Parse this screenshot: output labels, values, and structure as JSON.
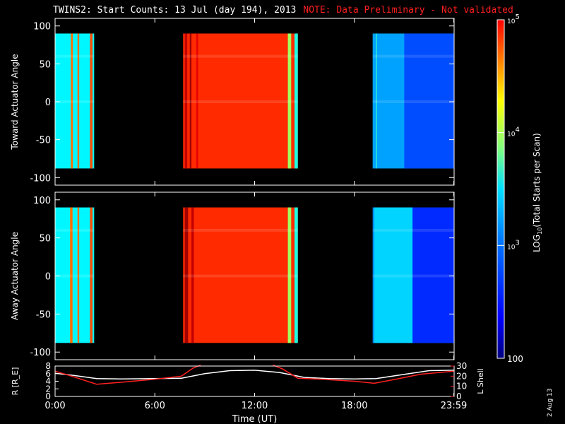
{
  "title": {
    "main": "TWINS2: Start Counts: 13 Jul (day 194), 2013",
    "note": "NOTE: Data Preliminary - Not validated"
  },
  "stamp": "2 Aug 13",
  "chart_data": [
    {
      "type": "heatmap",
      "name": "toward",
      "ylabel": "Toward Actuator Angle",
      "ylim": [
        -110,
        110
      ],
      "yticks": [
        100,
        50,
        0,
        -50,
        -100
      ],
      "angle_range": [
        -88,
        90
      ],
      "xlim_hours": [
        0,
        24
      ],
      "color_scale": "log10",
      "data_blocks": [
        {
          "start_h": 0.0,
          "end_h": 2.35,
          "level": 3.1,
          "stripes": [
            {
              "h": 0.95,
              "w": 0.12,
              "level": 4.3
            },
            {
              "h": 1.35,
              "w": 0.1,
              "level": 4.3
            },
            {
              "h": 2.1,
              "w": 0.15,
              "level": 4.4
            }
          ]
        },
        {
          "start_h": 7.7,
          "end_h": 14.6,
          "level": 4.5,
          "stripes": [
            {
              "h": 7.8,
              "w": 0.15,
              "level": 4.8
            },
            {
              "h": 8.1,
              "w": 0.1,
              "level": 4.9
            },
            {
              "h": 8.5,
              "w": 0.1,
              "level": 4.7
            },
            {
              "h": 14.0,
              "w": 0.2,
              "level": 3.6
            },
            {
              "h": 14.4,
              "w": 0.2,
              "level": 3.2
            }
          ]
        },
        {
          "start_h": 19.1,
          "end_h": 23.98,
          "level": 2.85,
          "stripes": [
            {
              "h": 19.3,
              "w": 0.05,
              "level": 3.3
            },
            {
              "h": 21.0,
              "w": 3.0,
              "level": 2.6
            }
          ]
        }
      ]
    },
    {
      "type": "heatmap",
      "name": "away",
      "ylabel": "Away Actuator Angle",
      "ylim": [
        -110,
        110
      ],
      "yticks": [
        100,
        50,
        0,
        -50,
        -100
      ],
      "angle_range": [
        -88,
        90
      ],
      "xlim_hours": [
        0,
        24
      ],
      "color_scale": "log10",
      "data_blocks": [
        {
          "start_h": 0.0,
          "end_h": 2.35,
          "level": 3.1,
          "stripes": [
            {
              "h": 0.9,
              "w": 0.15,
              "level": 4.3
            },
            {
              "h": 1.35,
              "w": 0.1,
              "level": 4.3
            },
            {
              "h": 2.1,
              "w": 0.15,
              "level": 4.4
            }
          ]
        },
        {
          "start_h": 7.7,
          "end_h": 14.6,
          "level": 4.5,
          "stripes": [
            {
              "h": 7.8,
              "w": 0.2,
              "level": 4.9
            },
            {
              "h": 8.2,
              "w": 0.15,
              "level": 4.8
            },
            {
              "h": 14.0,
              "w": 0.2,
              "level": 3.6
            },
            {
              "h": 14.4,
              "w": 0.2,
              "level": 3.2
            }
          ]
        },
        {
          "start_h": 19.1,
          "end_h": 23.98,
          "level": 2.8,
          "stripes": [
            {
              "h": 19.2,
              "w": 2.3,
              "level": 3.0
            },
            {
              "h": 21.5,
              "w": 2.5,
              "level": 2.5
            }
          ]
        }
      ]
    },
    {
      "type": "line",
      "name": "orbit",
      "ylabel_left": "R [R_E]",
      "ylabel_right": "L Shell",
      "ylim_left": [
        0,
        8
      ],
      "yticks_left": [
        0,
        2,
        4,
        6,
        8
      ],
      "ylim_right": [
        0,
        30
      ],
      "yticks_right": [
        0,
        10,
        20,
        30
      ],
      "xlim_hours": [
        0,
        24
      ],
      "xticks": [
        {
          "h": 0,
          "label": "0:00"
        },
        {
          "h": 6,
          "label": "6:00"
        },
        {
          "h": 12,
          "label": "12:00"
        },
        {
          "h": 18,
          "label": "18:00"
        },
        {
          "h": 23.98,
          "label": "23:59"
        }
      ],
      "xlabel": "Time (UT)",
      "series": [
        {
          "axis": "left",
          "color": "#ffffff",
          "x": [
            0,
            1,
            2.5,
            4,
            6,
            7.6,
            9,
            10.5,
            12,
            13.5,
            15,
            16.5,
            18,
            19.3,
            21,
            22.5,
            24
          ],
          "y": [
            6.1,
            5.6,
            4.7,
            4.6,
            4.7,
            4.8,
            6.0,
            6.8,
            6.9,
            6.3,
            5.0,
            4.7,
            4.6,
            4.7,
            5.8,
            6.8,
            6.9
          ]
        },
        {
          "axis": "right",
          "color": "#ff2020",
          "x": [
            0,
            1,
            2.5,
            4,
            6,
            7.6,
            8.3,
            8.75
          ],
          "y": [
            25,
            20,
            12,
            14,
            17,
            20,
            28,
            31
          ]
        },
        {
          "axis": "right",
          "color": "#ff2020",
          "x": [
            13.1,
            13.7,
            14.6,
            16,
            18,
            19.2,
            20.5,
            22,
            24
          ],
          "y": [
            31,
            27,
            18,
            17,
            15,
            13,
            17,
            22,
            25
          ]
        }
      ]
    }
  ],
  "colorbar": {
    "label": "LOG",
    "label_sub": "10",
    "label_rest": "(Total Starts per Scan)",
    "log_min": 2,
    "log_max": 5,
    "ticks": [
      {
        "v": 5,
        "base": "10",
        "exp": "5"
      },
      {
        "v": 4,
        "base": "10",
        "exp": "4"
      },
      {
        "v": 3,
        "base": "10",
        "exp": "3"
      },
      {
        "v": 2,
        "base": "100",
        "exp": ""
      }
    ]
  }
}
